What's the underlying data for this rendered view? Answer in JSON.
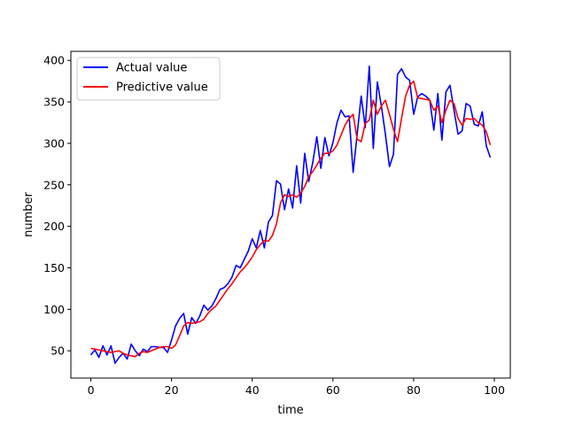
{
  "chart_data": {
    "type": "line",
    "title": "",
    "xlabel": "time",
    "ylabel": "number",
    "xlim": [
      -4.95,
      103.95
    ],
    "ylim": [
      17.1,
      410.9
    ],
    "xticks": [
      0,
      20,
      40,
      60,
      80,
      100
    ],
    "yticks": [
      50,
      100,
      150,
      200,
      250,
      300,
      350,
      400
    ],
    "grid": false,
    "legend_position": "upper-left",
    "x": [
      0,
      1,
      2,
      3,
      4,
      5,
      6,
      7,
      8,
      9,
      10,
      11,
      12,
      13,
      14,
      15,
      16,
      17,
      18,
      19,
      20,
      21,
      22,
      23,
      24,
      25,
      26,
      27,
      28,
      29,
      30,
      31,
      32,
      33,
      34,
      35,
      36,
      37,
      38,
      39,
      40,
      41,
      42,
      43,
      44,
      45,
      46,
      47,
      48,
      49,
      50,
      51,
      52,
      53,
      54,
      55,
      56,
      57,
      58,
      59,
      60,
      61,
      62,
      63,
      64,
      65,
      66,
      67,
      68,
      69,
      70,
      71,
      72,
      73,
      74,
      75,
      76,
      77,
      78,
      79,
      80,
      81,
      82,
      83,
      84,
      85,
      86,
      87,
      88,
      89,
      90,
      91,
      92,
      93,
      94,
      95,
      96,
      97,
      98,
      99
    ],
    "series": [
      {
        "name": "Actual value",
        "color": "#0000ff",
        "values": [
          45,
          51,
          42,
          56,
          45,
          56,
          35,
          42,
          47,
          40,
          58,
          50,
          44,
          52,
          49,
          55,
          55,
          54,
          54,
          48,
          63,
          80,
          89,
          95,
          70,
          90,
          83,
          92,
          105,
          99,
          104,
          113,
          124,
          126,
          131,
          139,
          153,
          150,
          160,
          170,
          185,
          174,
          195,
          174,
          205,
          213,
          255,
          251,
          220,
          245,
          222,
          273,
          228,
          288,
          254,
          277,
          308,
          270,
          307,
          285,
          301,
          325,
          340,
          332,
          333,
          265,
          311,
          357,
          319,
          393,
          294,
          374,
          345,
          311,
          272,
          287,
          383,
          390,
          380,
          376,
          335,
          356,
          360,
          357,
          352,
          316,
          360,
          304,
          362,
          370,
          340,
          311,
          315,
          348,
          345,
          323,
          321,
          338,
          297,
          283
        ]
      },
      {
        "name": "Predictive value",
        "color": "#ff0000",
        "values": [
          53,
          52,
          51,
          50,
          49,
          48,
          49,
          50,
          47,
          45,
          44,
          43,
          47,
          49,
          48,
          50,
          52,
          54,
          55,
          55,
          53,
          57,
          68,
          80,
          84,
          83,
          84,
          85,
          88,
          95,
          100,
          104,
          111,
          118,
          125,
          131,
          138,
          145,
          150,
          156,
          163,
          172,
          178,
          183,
          182,
          189,
          203,
          228,
          238,
          236,
          238,
          235,
          240,
          248,
          260,
          266,
          274,
          282,
          288,
          288,
          291,
          298,
          310,
          322,
          330,
          335,
          305,
          302,
          324,
          328,
          352,
          335,
          345,
          352,
          335,
          317,
          302,
          330,
          357,
          370,
          375,
          355,
          354,
          353,
          352,
          340,
          345,
          325,
          340,
          352,
          348,
          330,
          322,
          330,
          329,
          330,
          325,
          322,
          314,
          298
        ]
      }
    ]
  }
}
